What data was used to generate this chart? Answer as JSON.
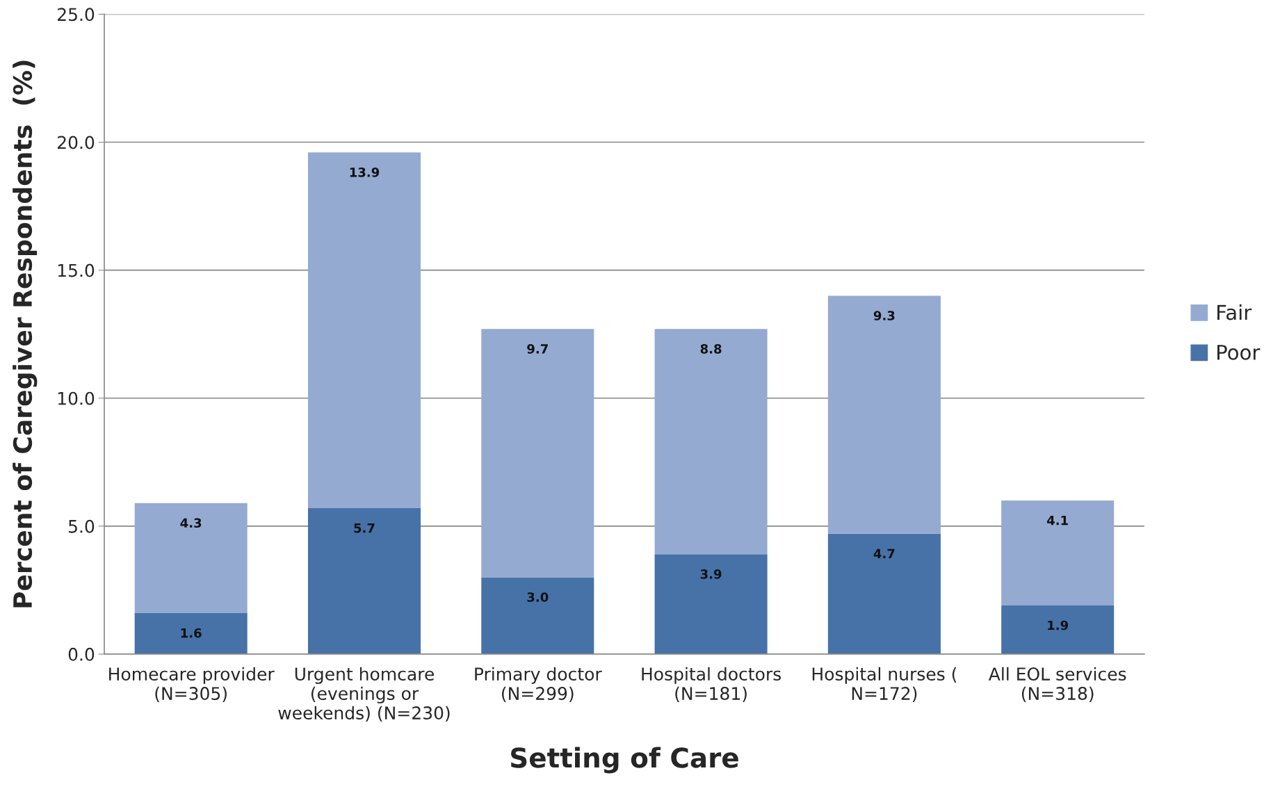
{
  "chart_data": {
    "type": "bar",
    "stacked": true,
    "xlabel": "Setting of Care",
    "ylabel": "Percent of Caregiver Respondents  (%)",
    "categories": [
      "Homecare provider\n(N=305)",
      "Urgent homcare\n(evenings or\nweekends) (N=230)",
      "Primary doctor\n(N=299)",
      "Hospital doctors\n(N=181)",
      "Hospital nurses (\nN=172)",
      "All EOL services\n(N=318)"
    ],
    "series": [
      {
        "name": "Poor",
        "color": "#4672a8",
        "values": [
          1.6,
          5.7,
          3.0,
          3.9,
          4.7,
          1.9
        ],
        "value_labels": [
          "1.6",
          "5.7",
          "3.0",
          "3.9",
          "4.7",
          "1.9"
        ]
      },
      {
        "name": "Fair",
        "color": "#95aad1",
        "values": [
          4.3,
          13.9,
          9.7,
          8.8,
          9.3,
          4.1
        ],
        "value_labels": [
          "4.3",
          "13.9",
          "9.7",
          "8.8",
          "9.3",
          "4.1"
        ]
      }
    ],
    "ylim": [
      0,
      25
    ],
    "yticks": [
      {
        "value": 0,
        "label": "0.0"
      },
      {
        "value": 5,
        "label": "5.0"
      },
      {
        "value": 10,
        "label": "10.0"
      },
      {
        "value": 15,
        "label": "15.0"
      },
      {
        "value": 20,
        "label": "20.0"
      },
      {
        "value": 25,
        "label": "25.0"
      }
    ],
    "grid": "y",
    "legend": "right"
  }
}
